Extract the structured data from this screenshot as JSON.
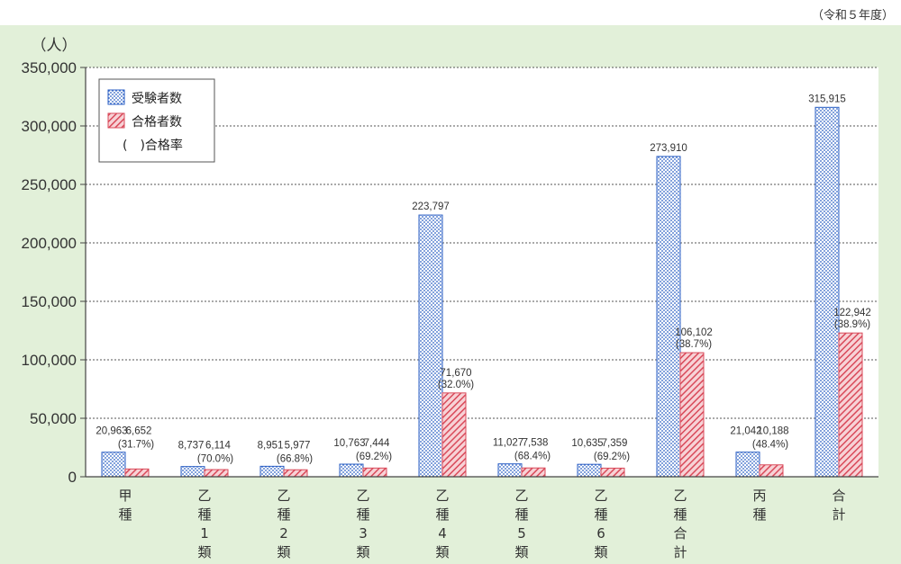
{
  "note": "（令和５年度）",
  "chart_data": {
    "type": "bar",
    "ylabel": "（人）",
    "ylim": [
      0,
      350000
    ],
    "yticks": [
      0,
      50000,
      100000,
      150000,
      200000,
      250000,
      300000,
      350000
    ],
    "ytick_labels": [
      "0",
      "50,000",
      "100,000",
      "150,000",
      "200,000",
      "250,000",
      "300,000",
      "350,000"
    ],
    "grid": true,
    "legend_position": "top-left",
    "categories": [
      "甲種",
      "乙種1類",
      "乙種2類",
      "乙種3類",
      "乙種4類",
      "乙種5類",
      "乙種6類",
      "乙種合計",
      "丙種",
      "合計"
    ],
    "series": [
      {
        "name": "受験者数",
        "color": "#2b5fc4",
        "pattern": "dots",
        "values": [
          20963,
          8737,
          8951,
          10763,
          223797,
          11027,
          10635,
          273910,
          21042,
          315915
        ],
        "labels": [
          "20,963",
          "8,737",
          "8,951",
          "10,763",
          "223,797",
          "11,027",
          "10,635",
          "273,910",
          "21,042",
          "315,915"
        ]
      },
      {
        "name": "合格者数",
        "color": "#d94a5a",
        "pattern": "hatch",
        "values": [
          6652,
          6114,
          5977,
          7444,
          71670,
          7538,
          7359,
          106102,
          10188,
          122942
        ],
        "labels": [
          "6,652",
          "6,114",
          "5,977",
          "7,444",
          "71,670",
          "7,538",
          "7,359",
          "106,102",
          "10,188",
          "122,942"
        ],
        "rates": [
          "(31.7%)",
          "(70.0%)",
          "(66.8%)",
          "(69.2%)",
          "(32.0%)",
          "(68.4%)",
          "(69.2%)",
          "(38.7%)",
          "(48.4%)",
          "(38.9%)"
        ]
      }
    ],
    "legend_extra": "(　)合格率"
  },
  "colors": {
    "panel_background": "#e2f0d9",
    "plot_background": "#ffffff",
    "axis": "#444444",
    "grid": "#555555"
  }
}
